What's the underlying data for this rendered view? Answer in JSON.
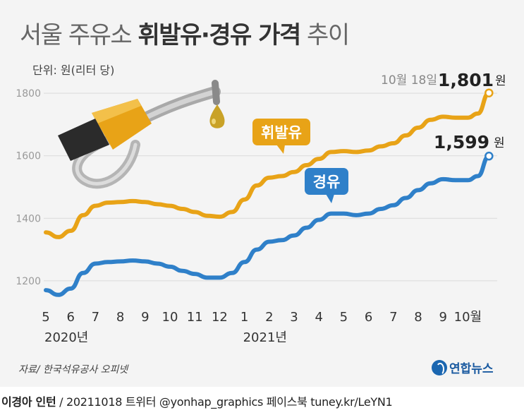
{
  "header": {
    "title_pre": "서울 주유소 ",
    "title_bold": "휘발유·경유 가격",
    "title_post": " 추이",
    "unit": "단위: 원(리터 당)"
  },
  "annotations": {
    "date": "10월 18일",
    "gas_end": "1,801",
    "diesel_end": "1,599",
    "won": "원",
    "gas_label": "휘발유",
    "diesel_label": "경유"
  },
  "colors": {
    "gasoline": "#e8a317",
    "diesel": "#2f80c9",
    "grid": "#d9d9d9"
  },
  "chart_data": {
    "type": "line",
    "ylim": [
      1150,
      1850
    ],
    "yticks": [
      1200,
      1400,
      1600,
      1800
    ],
    "xlim": [
      0,
      18.5
    ],
    "x_tick_labels": [
      "5",
      "6",
      "7",
      "8",
      "9",
      "10",
      "11",
      "12",
      "1",
      "2",
      "3",
      "4",
      "5",
      "6",
      "7",
      "8",
      "9",
      "10월"
    ],
    "year_labels": [
      {
        "x": 0,
        "label": "2020년"
      },
      {
        "x": 8,
        "label": "2021년"
      }
    ],
    "series": [
      {
        "name": "휘발유",
        "color": "#e8a317",
        "x": [
          0,
          0.5,
          1,
          1.5,
          2,
          2.5,
          3,
          3.5,
          4,
          4.5,
          5,
          5.5,
          6,
          6.5,
          7,
          7.5,
          8,
          8.5,
          9,
          9.5,
          10,
          10.5,
          11,
          11.5,
          12,
          12.5,
          13,
          13.5,
          14,
          14.5,
          15,
          15.5,
          16,
          16.5,
          17,
          17.4,
          17.85
        ],
        "y": [
          1355,
          1340,
          1360,
          1410,
          1440,
          1450,
          1452,
          1455,
          1452,
          1445,
          1440,
          1430,
          1420,
          1408,
          1405,
          1420,
          1460,
          1505,
          1530,
          1535,
          1548,
          1570,
          1590,
          1612,
          1615,
          1612,
          1617,
          1630,
          1640,
          1665,
          1690,
          1715,
          1725,
          1722,
          1722,
          1735,
          1801
        ]
      },
      {
        "name": "경유",
        "color": "#2f80c9",
        "x": [
          0,
          0.5,
          1,
          1.5,
          2,
          2.5,
          3,
          3.5,
          4,
          4.5,
          5,
          5.5,
          6,
          6.5,
          7,
          7.5,
          8,
          8.5,
          9,
          9.5,
          10,
          10.5,
          11,
          11.5,
          12,
          12.5,
          13,
          13.5,
          14,
          14.5,
          15,
          15.5,
          16,
          16.5,
          17,
          17.4,
          17.85
        ],
        "y": [
          1170,
          1155,
          1175,
          1225,
          1255,
          1260,
          1262,
          1265,
          1262,
          1255,
          1245,
          1232,
          1222,
          1210,
          1210,
          1225,
          1260,
          1300,
          1325,
          1330,
          1345,
          1370,
          1395,
          1415,
          1415,
          1410,
          1415,
          1430,
          1442,
          1465,
          1490,
          1512,
          1525,
          1522,
          1522,
          1535,
          1599
        ]
      }
    ]
  },
  "source": "자료/ 한국석유공사 오피넷",
  "logo": "연합뉴스",
  "footer": {
    "author": "이경아 인턴",
    "rest": " / 20211018 트위터 @yonhap_graphics  페이스북 tuney.kr/LeYN1"
  }
}
